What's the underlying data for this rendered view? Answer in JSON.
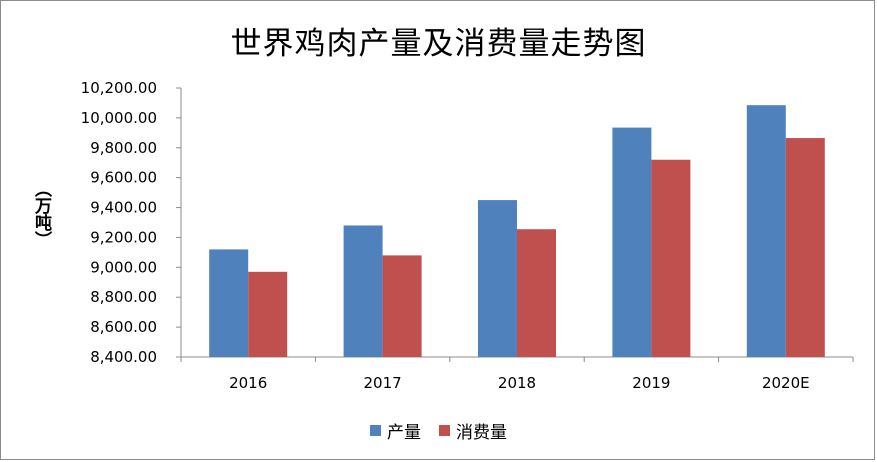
{
  "chart_data": {
    "type": "bar",
    "title": "世界鸡肉产量及消费量走势图",
    "ylabel": "（万吨）",
    "xlabel": "",
    "categories": [
      "2016",
      "2017",
      "2018",
      "2019",
      "2020E"
    ],
    "series": [
      {
        "name": "产量",
        "color": "#4f81bd",
        "values": [
          9120,
          9280,
          9450,
          9935,
          10085
        ]
      },
      {
        "name": "消费量",
        "color": "#c0504d",
        "values": [
          8970,
          9080,
          9255,
          9720,
          9865
        ]
      }
    ],
    "ylim": [
      8400,
      10200
    ],
    "yticks": [
      "8,400.00",
      "8,600.00",
      "8,800.00",
      "9,000.00",
      "9,200.00",
      "9,400.00",
      "9,600.00",
      "9,800.00",
      "10,000.00",
      "10,200.00"
    ],
    "ytick_values": [
      8400,
      8600,
      8800,
      9000,
      9200,
      9400,
      9600,
      9800,
      10000,
      10200
    ],
    "grid": false,
    "legend": "bottom"
  }
}
